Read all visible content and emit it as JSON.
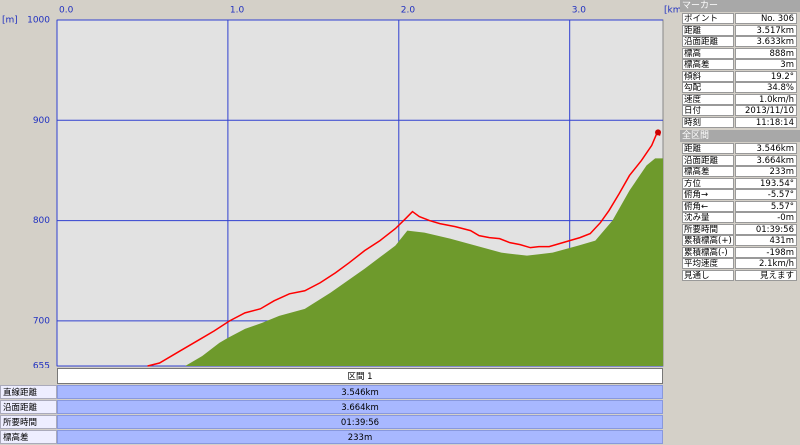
{
  "chart_data": {
    "type": "line",
    "x_unit": "[km]",
    "y_unit": "[m]",
    "xlim": [
      0,
      3.546
    ],
    "ylim": [
      655,
      1000
    ],
    "xticks": [
      {
        "value": 0,
        "label": "0.0"
      },
      {
        "value": 1,
        "label": "1.0"
      },
      {
        "value": 2,
        "label": "2.0"
      },
      {
        "value": 3,
        "label": "3.0"
      }
    ],
    "yticks": [
      655,
      700,
      800,
      900,
      1000
    ],
    "grid": true,
    "series": [
      {
        "type": "area",
        "color": "#6e9a2c",
        "x": [
          0.75,
          0.85,
          0.95,
          1.0,
          1.1,
          1.2,
          1.3,
          1.45,
          1.6,
          1.8,
          1.98,
          2.05,
          2.15,
          2.3,
          2.45,
          2.6,
          2.75,
          2.9,
          3.05,
          3.15,
          3.25,
          3.35,
          3.45,
          3.5,
          3.546
        ],
        "values": [
          655,
          665,
          678,
          683,
          692,
          698,
          705,
          712,
          728,
          752,
          775,
          790,
          788,
          782,
          775,
          768,
          765,
          768,
          775,
          780,
          800,
          830,
          855,
          862,
          862
        ]
      },
      {
        "type": "line",
        "color": "#ff0000",
        "x": [
          0.53,
          0.6,
          0.72,
          0.84,
          0.92,
          1.01,
          1.1,
          1.19,
          1.27,
          1.36,
          1.45,
          1.54,
          1.63,
          1.71,
          1.8,
          1.89,
          1.98,
          2.04,
          2.08,
          2.12,
          2.18,
          2.24,
          2.33,
          2.42,
          2.47,
          2.53,
          2.59,
          2.65,
          2.71,
          2.77,
          2.82,
          2.88,
          2.94,
          3.0,
          3.06,
          3.12,
          3.18,
          3.23,
          3.29,
          3.35,
          3.42,
          3.48,
          3.51,
          3.53
        ],
        "values": [
          655,
          658,
          670,
          682,
          690,
          700,
          708,
          712,
          720,
          727,
          730,
          738,
          748,
          758,
          770,
          780,
          792,
          802,
          809,
          804,
          800,
          797,
          794,
          790,
          785,
          783,
          782,
          778,
          776,
          773,
          774,
          774,
          777,
          780,
          783,
          787,
          798,
          810,
          827,
          845,
          860,
          875,
          887,
          885
        ]
      }
    ],
    "marker": {
      "x": 3.517,
      "y": 888,
      "color": "#cc0000"
    }
  },
  "marker_panel": {
    "title": "マーカー",
    "rows": [
      [
        "ポイント",
        "No. 306"
      ],
      [
        "距離",
        "3.517km"
      ],
      [
        "沿面距離",
        "3.633km"
      ],
      [
        "標高",
        "888m"
      ],
      [
        "標高差",
        "3m"
      ],
      [
        "傾斜",
        "19.2°"
      ],
      [
        "勾配",
        "34.8%"
      ],
      [
        "速度",
        "1.0km/h"
      ],
      [
        "日付",
        "2013/11/10"
      ],
      [
        "時刻",
        "11:18:14"
      ]
    ]
  },
  "total_panel": {
    "title": "全区間",
    "rows": [
      [
        "距離",
        "3.546km"
      ],
      [
        "沿面距離",
        "3.664km"
      ],
      [
        "標高差",
        "233m"
      ],
      [
        "方位",
        "193.54°"
      ],
      [
        "俯角→",
        "-5.57°"
      ],
      [
        "俯角←",
        "5.57°"
      ],
      [
        "沈み量",
        "-0m"
      ],
      [
        "所要時間",
        "01:39:56"
      ],
      [
        "累積標高(+)",
        "431m"
      ],
      [
        "累積標高(-)",
        "-198m"
      ],
      [
        "平均速度",
        "2.1km/h"
      ],
      [
        "見通し",
        "見えます"
      ]
    ]
  },
  "section": {
    "title": "区間 1",
    "rows": [
      [
        "直線距離",
        "3.546km"
      ],
      [
        "沿面距離",
        "3.664km"
      ],
      [
        "所要時間",
        "01:39:56"
      ],
      [
        "標高差",
        "233m"
      ]
    ]
  }
}
